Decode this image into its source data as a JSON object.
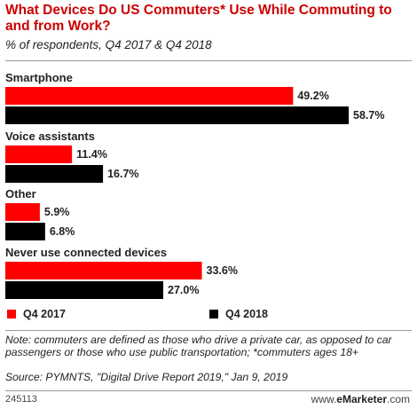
{
  "title": "What Devices Do US Commuters* Use While Commuting to and from Work?",
  "subtitle": "% of respondents, Q4 2017 & Q4 2018",
  "legend": {
    "q4_2017": "Q4 2017",
    "q4_2018": "Q4 2018"
  },
  "note": "Note: commuters are defined as those who drive a private car, as opposed to car passengers or those who use public transportation; *commuters ages 18+",
  "source": "Source: PYMNTS, \"Digital Drive Report 2019,\" Jan 9, 2019",
  "footer": {
    "chart_id": "245113",
    "brand_prefix": "www.",
    "brand_name": "eMarketer",
    "brand_suffix": ".com"
  },
  "colors": {
    "q4_2017": "#ff0000",
    "q4_2018": "#000000",
    "title": "#cc0000"
  },
  "chart_data": {
    "type": "bar",
    "orientation": "horizontal",
    "categories": [
      "Smartphone",
      "Voice assistants",
      "Other",
      "Never use connected devices"
    ],
    "series": [
      {
        "name": "Q4 2017",
        "values": [
          49.2,
          11.4,
          5.9,
          33.6
        ],
        "labels": [
          "49.2%",
          "11.4%",
          "5.9%",
          "33.6%"
        ]
      },
      {
        "name": "Q4 2018",
        "values": [
          58.7,
          16.7,
          6.8,
          27.0
        ],
        "labels": [
          "58.7%",
          "16.7%",
          "6.8%",
          "27.0%"
        ]
      }
    ],
    "xlim": [
      0,
      60
    ],
    "grid": false,
    "legend_position": "bottom"
  }
}
